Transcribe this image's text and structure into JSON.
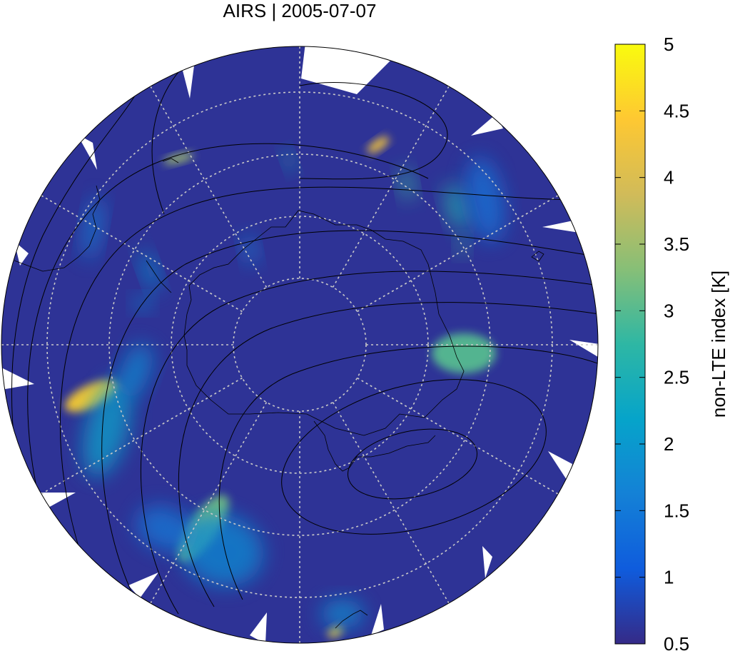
{
  "chart_data": {
    "type": "heatmap",
    "title": "AIRS | 2005-07-07",
    "projection": "south polar stereographic",
    "colorbar": {
      "label": "non-LTE index [K]",
      "range": [
        0.5,
        5
      ],
      "ticks": [
        "0.5",
        "1",
        "1.5",
        "2",
        "2.5",
        "3",
        "3.5",
        "4",
        "4.5",
        "5"
      ],
      "colormap": [
        "#352a87",
        "#0f5cdd",
        "#1481d6",
        "#06a4ca",
        "#2eb7a4",
        "#87bf77",
        "#d1bb59",
        "#fec832",
        "#f9fb0e"
      ]
    },
    "background_value": 0.6,
    "features": [
      "coastlines",
      "dotted latitude-longitude grid",
      "black contour lines"
    ],
    "hotspots": [
      {
        "region": "west",
        "peak": 4.5
      },
      {
        "region": "upper-right",
        "peak": 4.3
      },
      {
        "region": "right",
        "peak": 3.0
      },
      {
        "region": "lower-left",
        "peak": 3.2
      },
      {
        "region": "bottom",
        "peak": 4.2
      },
      {
        "region": "upper-left",
        "peak": 3.5
      }
    ],
    "grid": true
  }
}
